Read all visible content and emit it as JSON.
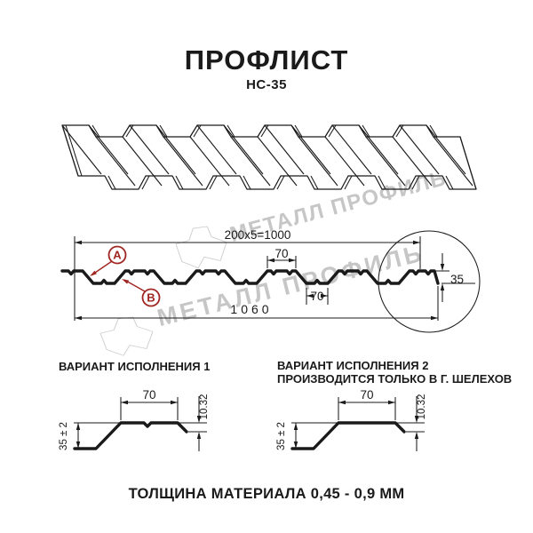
{
  "title": "ПРОФЛИСТ",
  "subtitle": "НС-35",
  "colors": {
    "accent": "#a02622",
    "line": "#1a1a1a",
    "watermark": "#c6c6c6"
  },
  "watermark": {
    "text": "МЕТАЛЛ ПРОФИЛЬ"
  },
  "section": {
    "dim_coverage": "200x5=1000",
    "dim_total": "1060",
    "dim_crest_top": "70",
    "dim_trough": "70",
    "dim_height": "35",
    "point_a": "A",
    "point_b": "B"
  },
  "variants": {
    "v1": {
      "heading": "ВАРИАНТ ИСПОЛНЕНИЯ 1",
      "dim_width": "70",
      "dim_height": "35 ± 2",
      "dim_lip": "10.32"
    },
    "v2": {
      "heading": "ВАРИАНТ ИСПОЛНЕНИЯ 2",
      "subheading": "ПРОИЗВОДИТСЯ ТОЛЬКО В Г. ШЕЛЕХОВ",
      "dim_width": "70",
      "dim_height": "35 ± 2",
      "dim_lip": "10.32"
    }
  },
  "footer": "ТОЛЩИНА МАТЕРИАЛА 0,45 - 0,9 ММ"
}
